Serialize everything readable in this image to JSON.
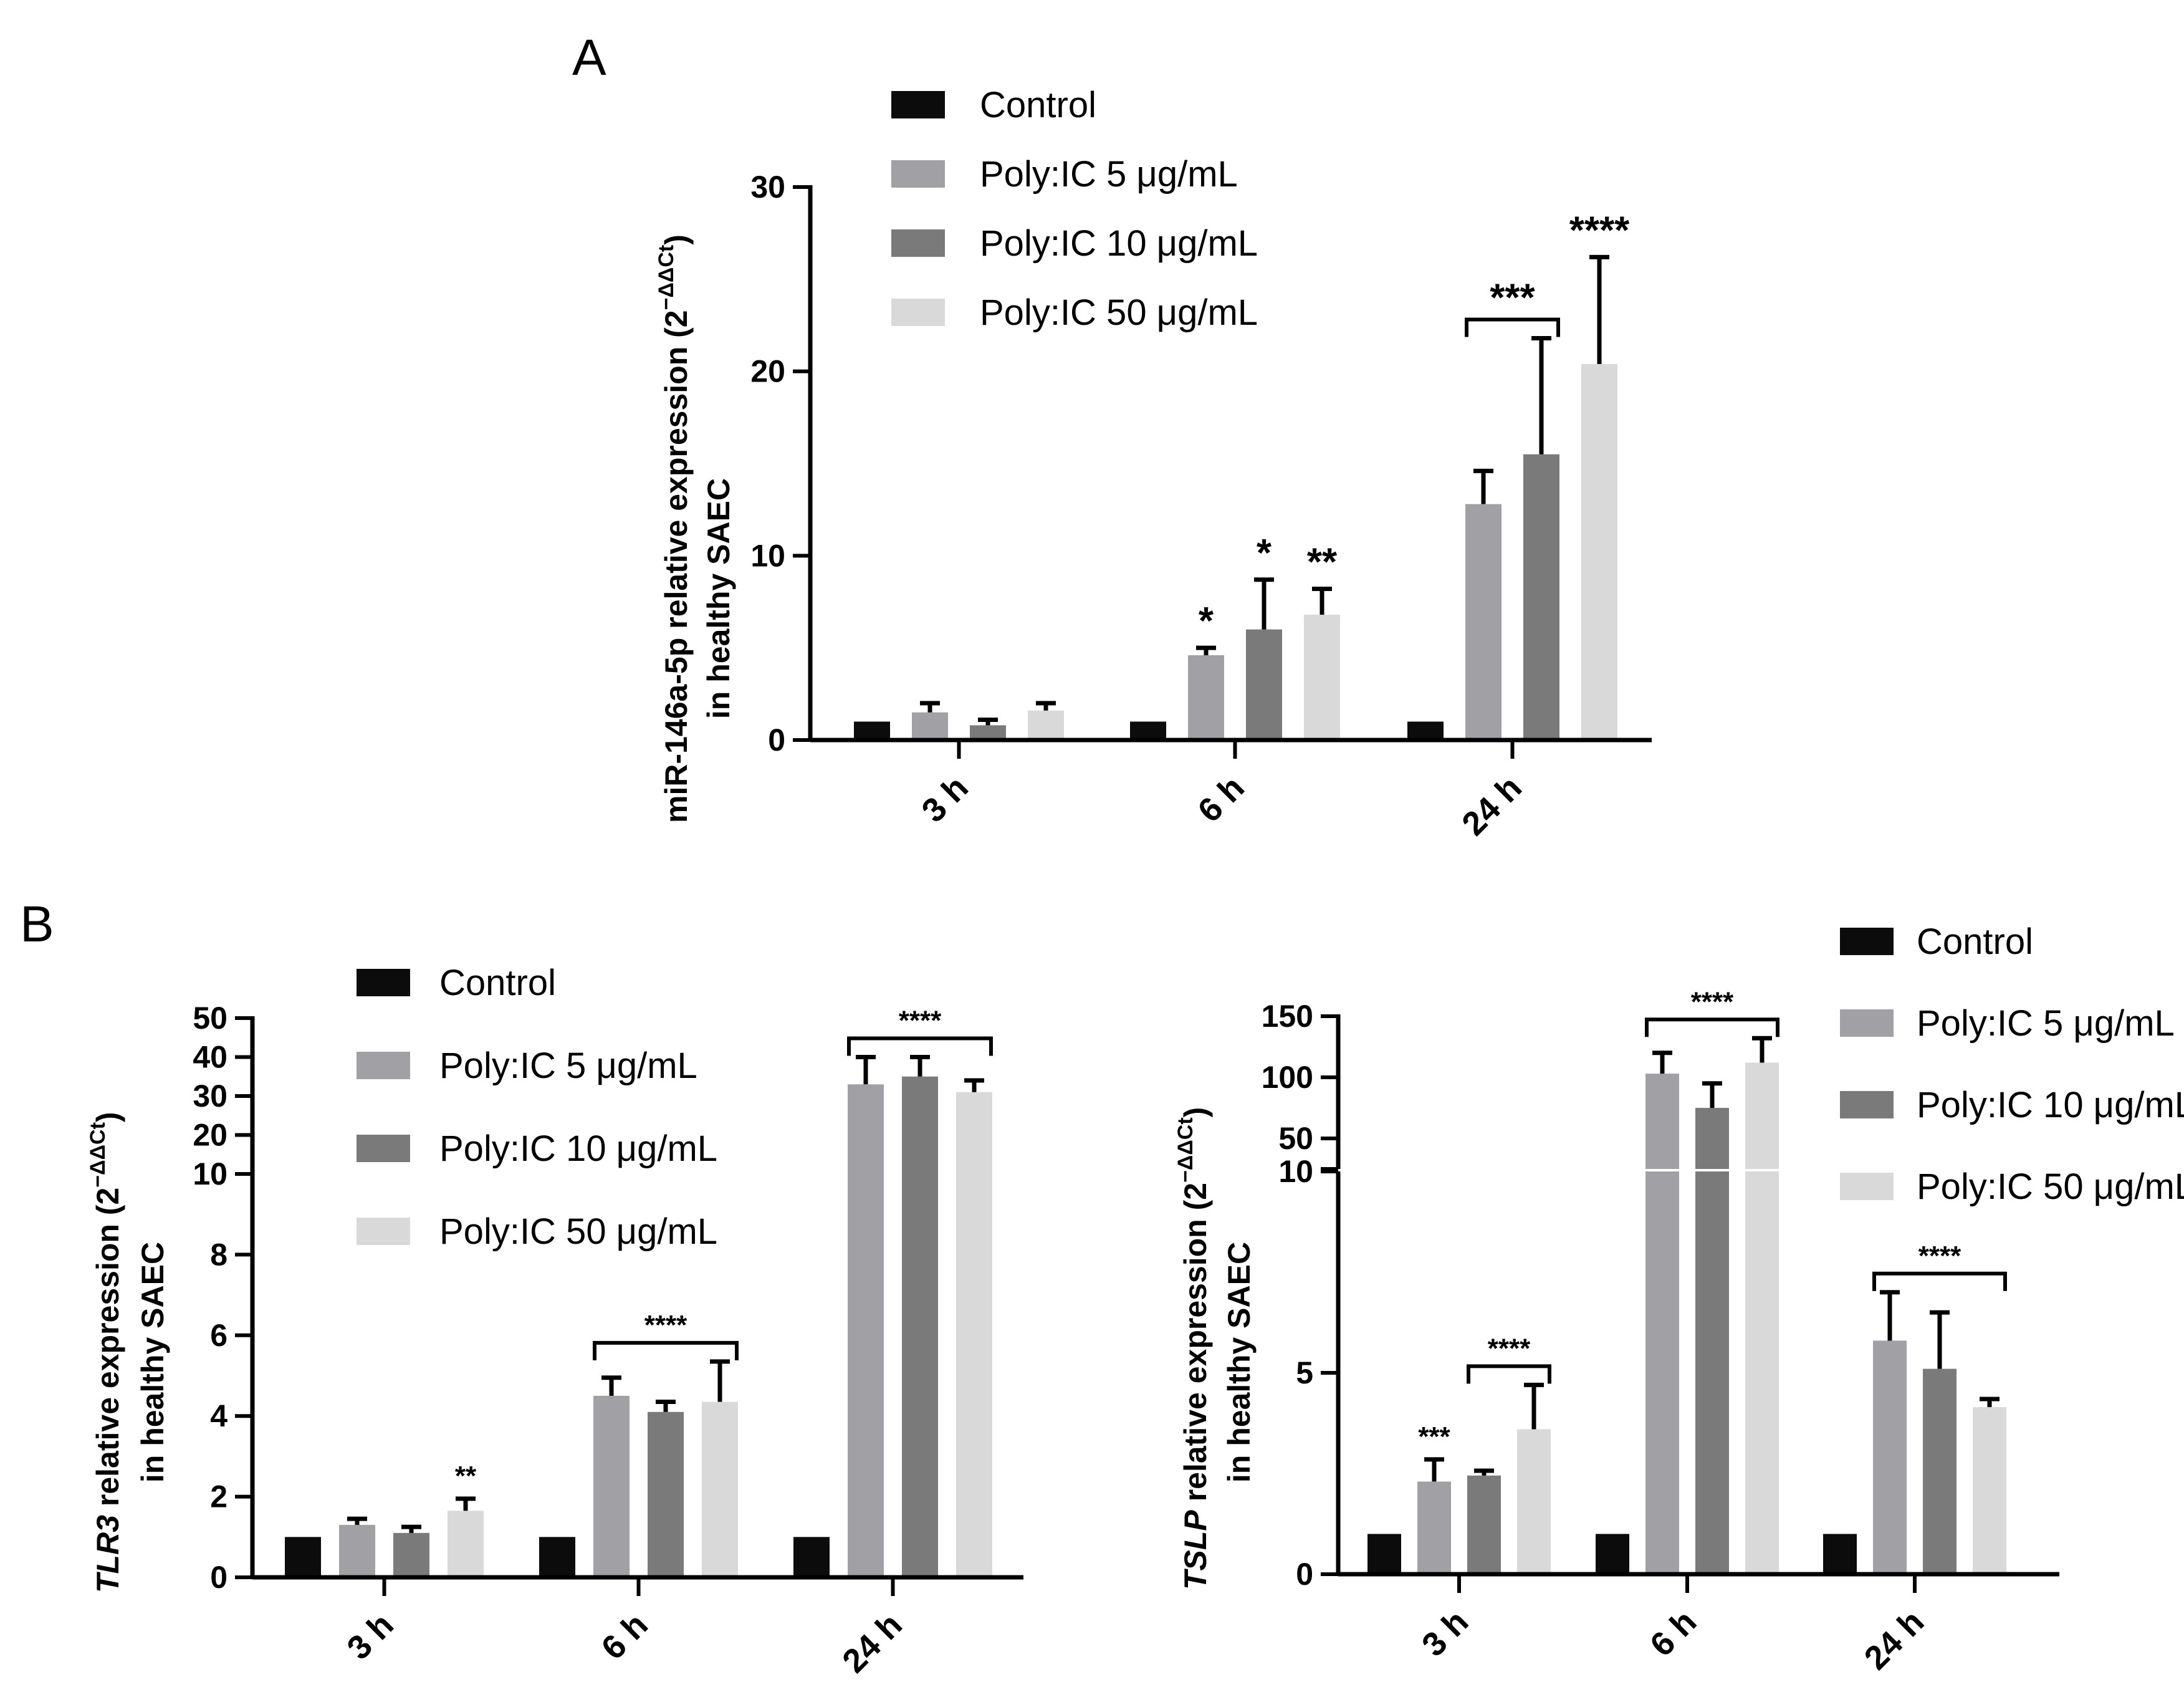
{
  "colors": {
    "Control": "#0c0c0c",
    "Poly:IC 5 μg/mL": "#a0a0a5",
    "Poly:IC 10 μg/mL": "#7a7a7a",
    "Poly:IC 50 μg/mL": "#d9d9d9"
  },
  "chart_data": [
    {
      "panel": "A",
      "type": "bar",
      "ylabel_line1": "miR-146a-5p relative expression (2",
      "ylabel_sup": "−ΔΔCt",
      "ylabel_close": ")",
      "ylabel_line2": "in healthy SAEC",
      "categories": [
        "3 h",
        "6 h",
        "24 h"
      ],
      "ylim": [
        0,
        30
      ],
      "yticks": [
        0,
        10,
        20,
        30
      ],
      "legend": [
        "Control",
        "Poly:IC 5 μg/mL",
        "Poly:IC 10 μg/mL",
        "Poly:IC 50 μg/mL"
      ],
      "series": [
        {
          "name": "Control",
          "values": [
            1.0,
            1.0,
            1.0
          ],
          "errors": [
            0,
            0,
            0
          ]
        },
        {
          "name": "Poly:IC 5 μg/mL",
          "values": [
            1.5,
            4.6,
            12.8
          ],
          "errors": [
            0.5,
            0.4,
            1.8
          ]
        },
        {
          "name": "Poly:IC 10 μg/mL",
          "values": [
            0.8,
            6.0,
            15.5
          ],
          "errors": [
            0.3,
            2.7,
            6.3
          ]
        },
        {
          "name": "Poly:IC 50 μg/mL",
          "values": [
            1.6,
            6.8,
            20.4
          ],
          "errors": [
            0.4,
            1.4,
            5.8
          ]
        }
      ],
      "annotations": [
        {
          "label": "*",
          "category": "6 h",
          "series": "Poly:IC 5 μg/mL"
        },
        {
          "label": "*",
          "category": "6 h",
          "series": "Poly:IC 10 μg/mL"
        },
        {
          "label": "**",
          "category": "6 h",
          "series": "Poly:IC 50 μg/mL"
        },
        {
          "label": "***",
          "category": "24 h",
          "from": "Poly:IC 5 μg/mL",
          "to": "Poly:IC 10 μg/mL",
          "bracket": true
        },
        {
          "label": "****",
          "category": "24 h",
          "series": "Poly:IC 50 μg/mL"
        }
      ]
    },
    {
      "panel": "B",
      "type": "bar",
      "gene": "TLR3",
      "ylabel_line1": " relative expression (2",
      "ylabel_sup": "−ΔΔCt",
      "ylabel_close": ")",
      "ylabel_line2": "in healthy SAEC",
      "categories": [
        "3 h",
        "6 h",
        "24 h"
      ],
      "y_broken_axis": {
        "lower": [
          0,
          10
        ],
        "upper": [
          10,
          50
        ]
      },
      "yticks_lower": [
        0,
        2,
        4,
        6,
        8,
        10
      ],
      "yticks_upper": [
        10,
        20,
        30,
        40,
        50
      ],
      "legend": [
        "Control",
        "Poly:IC 5 μg/mL",
        "Poly:IC 10 μg/mL",
        "Poly:IC 50 μg/mL"
      ],
      "series": [
        {
          "name": "Control",
          "values": [
            1.0,
            1.0,
            1.0
          ],
          "errors": [
            0,
            0,
            0
          ]
        },
        {
          "name": "Poly:IC 5 μg/mL",
          "values": [
            1.3,
            4.5,
            33
          ],
          "errors": [
            0.15,
            0.45,
            7
          ]
        },
        {
          "name": "Poly:IC 10 μg/mL",
          "values": [
            1.1,
            4.1,
            35
          ],
          "errors": [
            0.15,
            0.25,
            5
          ]
        },
        {
          "name": "Poly:IC 50 μg/mL",
          "values": [
            1.65,
            4.35,
            31
          ],
          "errors": [
            0.3,
            1.0,
            3
          ]
        }
      ],
      "annotations": [
        {
          "label": "**",
          "category": "3 h",
          "series": "Poly:IC 50 μg/mL"
        },
        {
          "label": "****",
          "category": "6 h",
          "from": "Poly:IC 5 μg/mL",
          "to": "Poly:IC 50 μg/mL",
          "bracket": true
        },
        {
          "label": "****",
          "category": "24 h",
          "from": "Poly:IC 5 μg/mL",
          "to": "Poly:IC 50 μg/mL",
          "bracket": true
        }
      ]
    },
    {
      "panel": "B-right",
      "type": "bar",
      "gene": "TSLP",
      "ylabel_line1": " relative expression (2",
      "ylabel_sup": "−ΔΔCt",
      "ylabel_close": ")",
      "ylabel_line2": "in healthy SAEC",
      "categories": [
        "3 h",
        "6 h",
        "24 h"
      ],
      "y_broken_axis": {
        "lower": [
          0,
          10
        ],
        "upper": [
          25,
          150
        ]
      },
      "yticks_lower": [
        0,
        5,
        10
      ],
      "yticks_upper": [
        50,
        100,
        150
      ],
      "legend": [
        "Control",
        "Poly:IC 5 μg/mL",
        "Poly:IC 10 μg/mL",
        "Poly:IC 50 μg/mL"
      ],
      "series": [
        {
          "name": "Control",
          "values": [
            1.0,
            1.0,
            1.0
          ],
          "errors": [
            0,
            0,
            0
          ]
        },
        {
          "name": "Poly:IC 5 μg/mL",
          "values": [
            2.3,
            103,
            5.8
          ],
          "errors": [
            0.55,
            17,
            1.2
          ]
        },
        {
          "name": "Poly:IC 10 μg/mL",
          "values": [
            2.45,
            75,
            5.1
          ],
          "errors": [
            0.12,
            20,
            1.4
          ]
        },
        {
          "name": "Poly:IC 50 μg/mL",
          "values": [
            3.6,
            112,
            4.15
          ],
          "errors": [
            1.1,
            20,
            0.2
          ]
        }
      ],
      "annotations": [
        {
          "label": "***",
          "category": "3 h",
          "series": "Poly:IC 5 μg/mL"
        },
        {
          "label": "****",
          "category": "3 h",
          "from": "Poly:IC 10 μg/mL",
          "to": "Poly:IC 50 μg/mL",
          "bracket": true
        },
        {
          "label": "****",
          "category": "6 h",
          "from": "Poly:IC 5 μg/mL",
          "to": "Poly:IC 50 μg/mL",
          "bracket": true
        },
        {
          "label": "****",
          "category": "24 h",
          "from": "Poly:IC 5 μg/mL",
          "to": "Poly:IC 50 μg/mL",
          "bracket": true
        }
      ]
    }
  ]
}
